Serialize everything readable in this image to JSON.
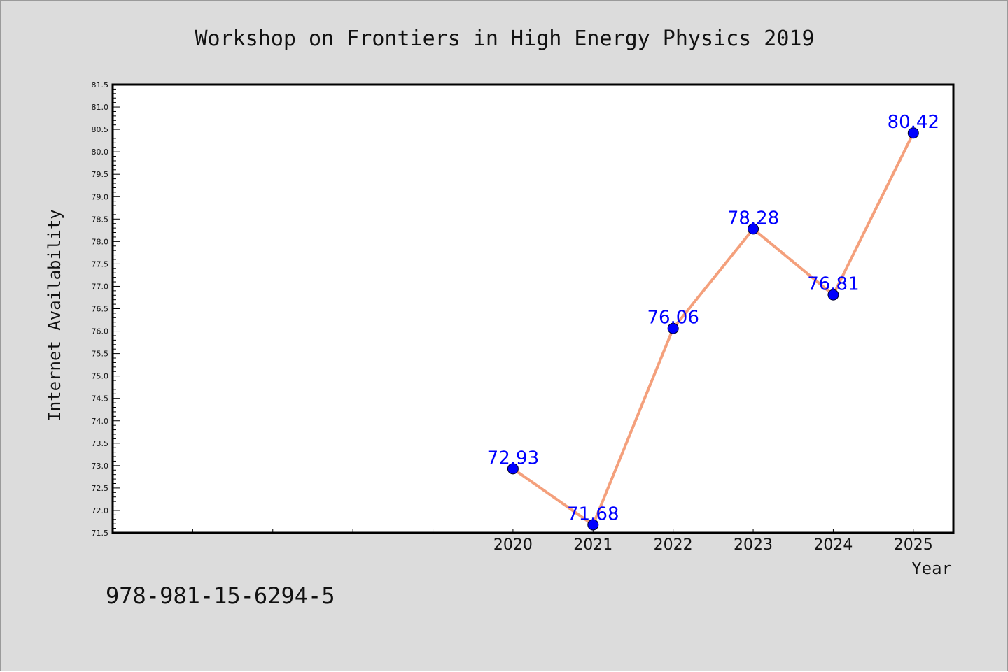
{
  "chart_data": {
    "type": "line",
    "title": "Workshop on Frontiers in High Energy Physics 2019",
    "xlabel": "Year",
    "ylabel": "Internet Availability",
    "ylim": [
      71.5,
      81.5
    ],
    "ytick_step": 0.5,
    "xlim": [
      2015,
      2025.5
    ],
    "x": [
      2020,
      2021,
      2022,
      2023,
      2024,
      2025
    ],
    "x_tick_labels": [
      "2020",
      "2021",
      "2022",
      "2023",
      "2024",
      "2025"
    ],
    "series": [
      {
        "values": [
          72.93,
          71.68,
          76.06,
          78.28,
          76.81,
          80.42
        ],
        "labels": [
          "72.93",
          "71.68",
          "76.06",
          "78.28",
          "76.81",
          "80.42"
        ]
      }
    ],
    "grid": false,
    "colors": {
      "line": "#f4a07c",
      "marker": "#0000ff",
      "data_label": "#0000ff",
      "background": "#dcdcdc",
      "plot_background": "#ffffff"
    }
  },
  "footer": {
    "isbn": "978-981-15-6294-5"
  }
}
